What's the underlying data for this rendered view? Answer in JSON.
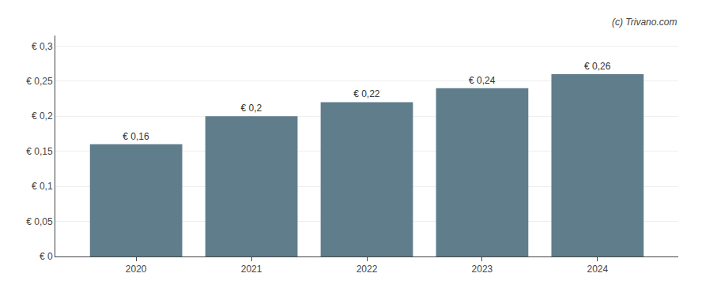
{
  "chart_data": {
    "type": "bar",
    "x": [
      2020,
      2021,
      2022,
      2023,
      2024
    ],
    "values": [
      0.16,
      0.2,
      0.22,
      0.24,
      0.26
    ],
    "value_labels": [
      "€ 0,16",
      "€ 0,2",
      "€ 0,22",
      "€ 0,24",
      "€ 0,26"
    ],
    "data_labels": true,
    "color": "#607d8b",
    "xlim": [
      2019.3,
      2024.7
    ],
    "xticks": [
      2020,
      2021,
      2022,
      2023,
      2024
    ],
    "ylim": [
      0,
      0.315
    ],
    "yticks": [
      {
        "value": 0,
        "label": "€ 0"
      },
      {
        "value": 0.05,
        "label": "€ 0,05"
      },
      {
        "value": 0.1,
        "label": "€ 0,1"
      },
      {
        "value": 0.15,
        "label": "€ 0,15"
      },
      {
        "value": 0.2,
        "label": "€ 0,2"
      },
      {
        "value": 0.25,
        "label": "€ 0,25"
      },
      {
        "value": 0.3,
        "label": "€ 0,3"
      }
    ],
    "grid": true,
    "annotations": [
      "(c) Trivano.com"
    ]
  }
}
